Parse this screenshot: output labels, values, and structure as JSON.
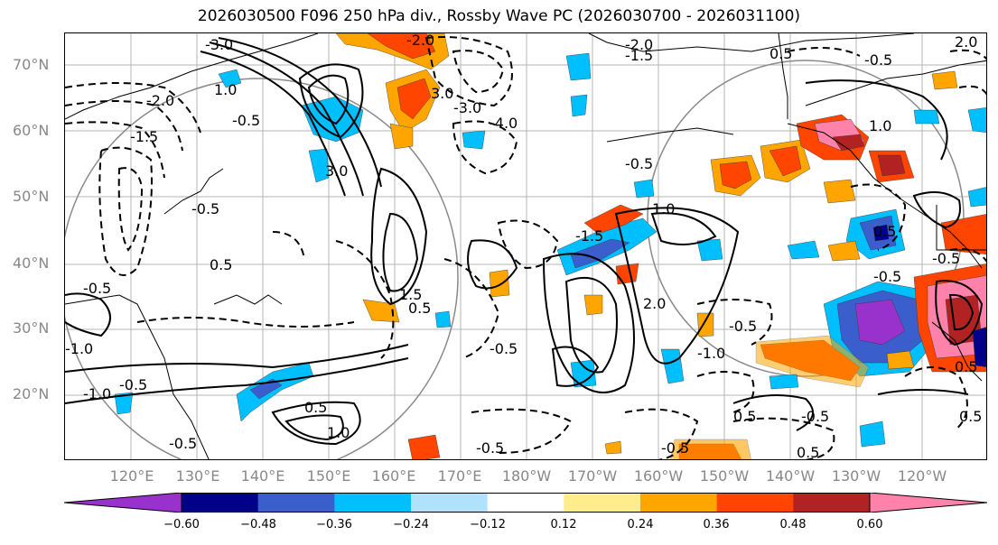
{
  "title": "2026030500 F096 250 hPa div., Rossby Wave PC (2026030700 - 2026031100)",
  "lat_labels": [
    "70°N",
    "60°N",
    "50°N",
    "40°N",
    "30°N",
    "20°N"
  ],
  "lon_labels": [
    "120°E",
    "130°E",
    "140°E",
    "150°E",
    "160°E",
    "170°E",
    "180°W",
    "170°W",
    "160°W",
    "150°W",
    "140°W",
    "130°W",
    "120°W"
  ],
  "colorbar": {
    "colors": [
      "#9932cc",
      "#00008b",
      "#3a5fcd",
      "#00bfff",
      "#b0e2ff",
      "#ffffff",
      "#ffec8b",
      "#ffa500",
      "#ff4500",
      "#b22222",
      "#ff82ab"
    ],
    "tick_labels": [
      "−0.60",
      "−0.48",
      "−0.36",
      "−0.24",
      "−0.12",
      "0.12",
      "0.24",
      "0.36",
      "0.48",
      "0.60"
    ]
  },
  "contour_labels": {
    "pos_0_5": "0.5",
    "pos_1_0": "1.0",
    "pos_1_5": "1.5",
    "pos_2_0": "2.0",
    "pos_3_0": "3.0",
    "neg_0_5": "-0.5",
    "neg_1_0": "-1.0",
    "neg_1_5": "-1.5",
    "neg_2_0": "-2.0",
    "neg_3_0": "-3.0",
    "neg_4_0": "-4.0"
  }
}
